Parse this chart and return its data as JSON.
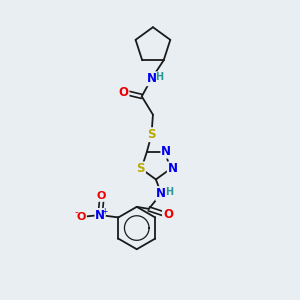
{
  "background_color": "#e8eef2",
  "bond_color": "#1a1a1a",
  "atom_colors": {
    "N": "#0000ee",
    "O": "#ee0000",
    "S": "#bbaa00",
    "H": "#2a9898",
    "C": "#1a1a1a"
  },
  "font_size_atoms": 8.5,
  "fig_width": 3.0,
  "fig_height": 3.0,
  "dpi": 100
}
